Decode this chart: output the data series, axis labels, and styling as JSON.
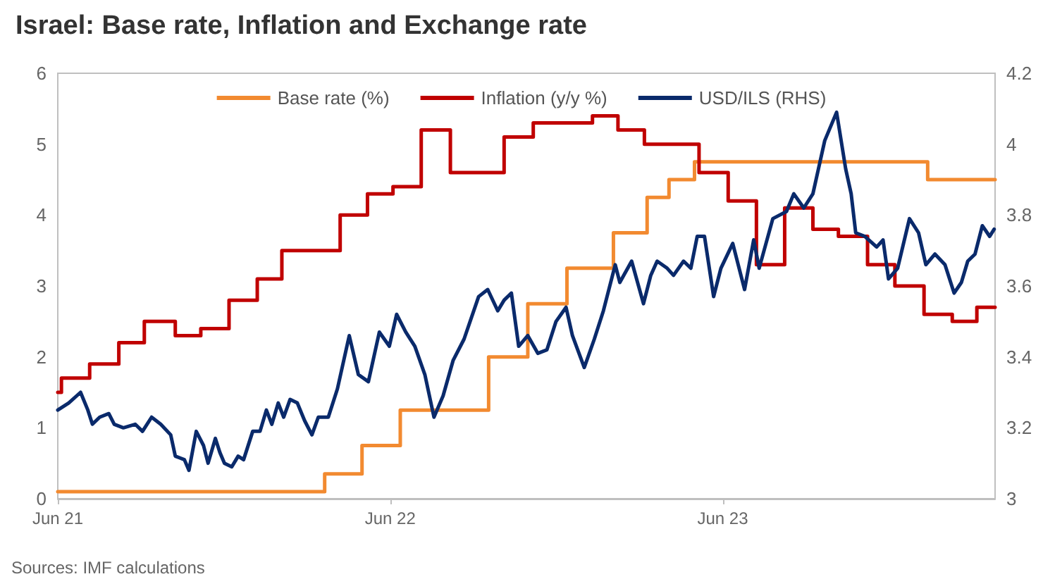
{
  "chart_data": {
    "type": "step",
    "title": "Israel: Base rate, Inflation and Exchange rate",
    "annotations": [
      "Sources: IMF calculations"
    ],
    "xlim": [
      "2021-06-01",
      "2024-03-26"
    ],
    "xticks": [
      {
        "value": "2021-06-01",
        "label": "Jun 21"
      },
      {
        "value": "2022-06-01",
        "label": "Jun 22"
      },
      {
        "value": "2023-06-01",
        "label": "Jun 23"
      }
    ],
    "ylim": [
      0,
      6
    ],
    "yticks": [
      0,
      1,
      2,
      3,
      4,
      5,
      6
    ],
    "y2lim": [
      3,
      4.2
    ],
    "y2ticks": [
      3,
      3.2,
      3.4,
      3.6,
      3.8,
      4,
      4.2
    ],
    "grid": false,
    "legend": "top",
    "marker": "none",
    "line_style": "solid",
    "series": [
      {
        "name": "Base rate (%)",
        "color": "#f28a30",
        "x": [
          "2021-06-01",
          "2022-03-21",
          "2022-05-01",
          "2022-06-12",
          "2022-09-17",
          "2022-10-30",
          "2022-12-12",
          "2023-02-01",
          "2023-03-10",
          "2023-04-03",
          "2023-05-01",
          "2024-01-12",
          "2024-03-26"
        ],
        "values": [
          0.1,
          0.35,
          0.75,
          1.25,
          2,
          2.75,
          3.25,
          3.75,
          4.25,
          4.5,
          4.75,
          4.5,
          4.5
        ]
      },
      {
        "name": "Inflation (y/y %)",
        "color": "#c00000",
        "x": [
          "2021-06-01",
          "2021-06-05",
          "2021-07-06",
          "2021-08-07",
          "2021-09-04",
          "2021-10-08",
          "2021-11-05",
          "2021-12-06",
          "2022-01-06",
          "2022-02-02",
          "2022-04-07",
          "2022-05-07",
          "2022-06-04",
          "2022-07-05",
          "2022-08-06",
          "2022-10-04",
          "2022-11-05",
          "2023-01-09",
          "2023-02-06",
          "2023-03-07",
          "2023-05-06",
          "2023-06-07",
          "2023-07-08",
          "2023-08-08",
          "2023-09-08",
          "2023-10-06",
          "2023-11-07",
          "2023-12-07",
          "2024-01-08",
          "2024-02-08",
          "2024-03-06",
          "2024-03-26"
        ],
        "values": [
          1.5,
          1.7,
          1.9,
          2.2,
          2.5,
          2.3,
          2.4,
          2.8,
          3.1,
          3.5,
          4,
          4.3,
          4.4,
          5.2,
          4.6,
          5.1,
          5.3,
          5.4,
          5.2,
          5,
          4.6,
          4.2,
          3.3,
          4.1,
          3.8,
          3.7,
          3.3,
          3,
          2.6,
          2.5,
          2.7,
          2.7
        ]
      },
      {
        "name": "USD/ILS (RHS)",
        "type": "line",
        "axis": "y2",
        "color": "#0a2a6b",
        "x": [
          "2021-06-01",
          "2021-06-13",
          "2021-06-26",
          "2021-07-04",
          "2021-07-09",
          "2021-07-17",
          "2021-07-27",
          "2021-08-02",
          "2021-08-12",
          "2021-08-25",
          "2021-09-02",
          "2021-09-12",
          "2021-09-22",
          "2021-10-03",
          "2021-10-08",
          "2021-10-18",
          "2021-10-23",
          "2021-10-31",
          "2021-11-08",
          "2021-11-13",
          "2021-11-21",
          "2021-11-26",
          "2021-12-01",
          "2021-12-09",
          "2021-12-16",
          "2021-12-22",
          "2022-01-01",
          "2022-01-09",
          "2022-01-16",
          "2022-01-22",
          "2022-01-29",
          "2022-02-04",
          "2022-02-11",
          "2022-02-19",
          "2022-02-27",
          "2022-03-07",
          "2022-03-14",
          "2022-03-25",
          "2022-04-04",
          "2022-04-17",
          "2022-04-27",
          "2022-05-08",
          "2022-05-20",
          "2022-05-31",
          "2022-06-08",
          "2022-06-18",
          "2022-06-28",
          "2022-07-09",
          "2022-07-19",
          "2022-07-29",
          "2022-08-09",
          "2022-08-21",
          "2022-09-06",
          "2022-09-16",
          "2022-09-27",
          "2022-10-04",
          "2022-10-12",
          "2022-10-20",
          "2022-10-30",
          "2022-11-10",
          "2022-11-20",
          "2022-11-30",
          "2022-12-11",
          "2022-12-18",
          "2022-12-31",
          "2023-01-11",
          "2023-01-21",
          "2023-02-03",
          "2023-02-08",
          "2023-02-21",
          "2023-03-06",
          "2023-03-14",
          "2023-03-21",
          "2023-04-01",
          "2023-04-08",
          "2023-04-19",
          "2023-04-27",
          "2023-05-04",
          "2023-05-12",
          "2023-05-22",
          "2023-05-30",
          "2023-06-12",
          "2023-06-25",
          "2023-07-05",
          "2023-07-11",
          "2023-07-26",
          "2023-08-10",
          "2023-08-18",
          "2023-08-29",
          "2023-09-08",
          "2023-09-21",
          "2023-10-04",
          "2023-10-14",
          "2023-10-20",
          "2023-10-25",
          "2023-11-04",
          "2023-11-17",
          "2023-11-24",
          "2023-11-30",
          "2023-12-10",
          "2023-12-23",
          "2024-01-02",
          "2024-01-10",
          "2024-01-20",
          "2024-01-31",
          "2024-02-10",
          "2024-02-18",
          "2024-02-25",
          "2024-03-04",
          "2024-03-12",
          "2024-03-20",
          "2024-03-25"
        ],
        "values": [
          3.25,
          3.27,
          3.3,
          3.25,
          3.21,
          3.23,
          3.24,
          3.21,
          3.2,
          3.21,
          3.19,
          3.23,
          3.21,
          3.18,
          3.12,
          3.11,
          3.08,
          3.19,
          3.15,
          3.1,
          3.17,
          3.13,
          3.1,
          3.09,
          3.12,
          3.11,
          3.19,
          3.19,
          3.25,
          3.21,
          3.27,
          3.23,
          3.28,
          3.27,
          3.22,
          3.18,
          3.23,
          3.23,
          3.31,
          3.46,
          3.35,
          3.33,
          3.47,
          3.43,
          3.52,
          3.47,
          3.43,
          3.35,
          3.23,
          3.29,
          3.39,
          3.45,
          3.57,
          3.59,
          3.53,
          3.56,
          3.58,
          3.43,
          3.46,
          3.41,
          3.42,
          3.5,
          3.54,
          3.46,
          3.37,
          3.45,
          3.53,
          3.66,
          3.61,
          3.67,
          3.55,
          3.63,
          3.67,
          3.65,
          3.63,
          3.67,
          3.65,
          3.74,
          3.74,
          3.57,
          3.65,
          3.72,
          3.59,
          3.73,
          3.65,
          3.79,
          3.81,
          3.86,
          3.82,
          3.86,
          4.01,
          4.09,
          3.93,
          3.86,
          3.75,
          3.74,
          3.71,
          3.73,
          3.62,
          3.65,
          3.79,
          3.75,
          3.66,
          3.69,
          3.66,
          3.58,
          3.61,
          3.67,
          3.69,
          3.77,
          3.74,
          3.76
        ]
      }
    ]
  }
}
